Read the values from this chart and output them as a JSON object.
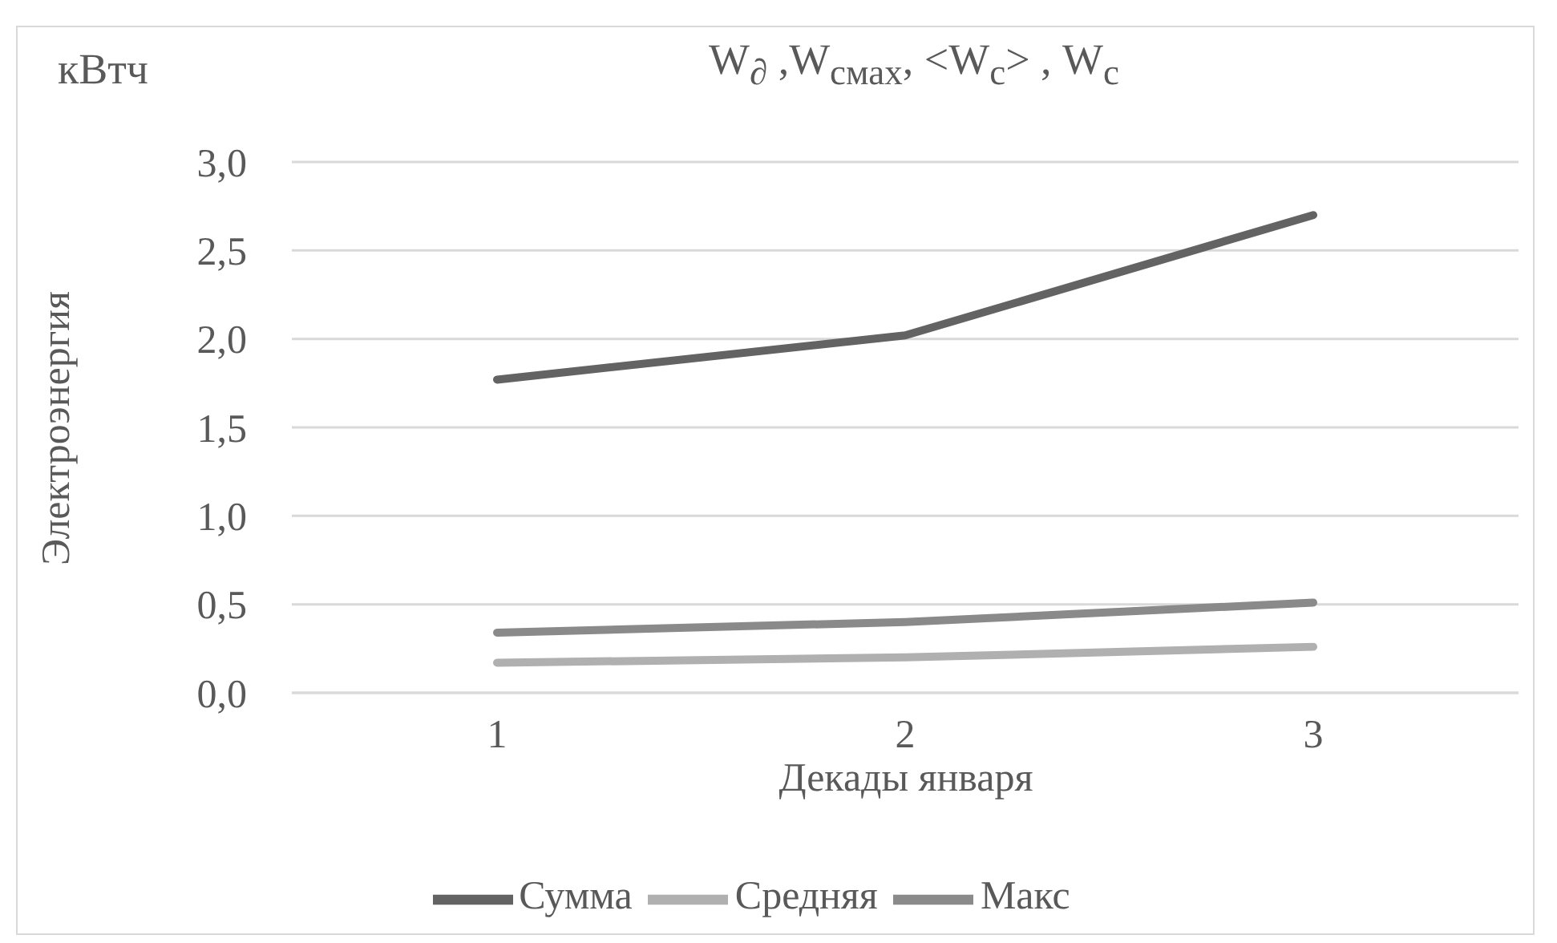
{
  "chart_data": {
    "type": "line",
    "title": "W$_{∂}$ ,W$_{смах}$, <W$_{с}$> , W$_{с}$",
    "xlabel": "Декады января",
    "ylabel": "Электроэнергия",
    "annotations": [
      "кВтч"
    ],
    "categories": [
      "1",
      "2",
      "3"
    ],
    "series": [
      {
        "name": "Сумма",
        "color": "#636363",
        "values": [
          1.77,
          2.02,
          2.7
        ]
      },
      {
        "name": "Средняя",
        "color": "#b0b0b0",
        "values": [
          0.17,
          0.2,
          0.26
        ]
      },
      {
        "name": "Макс",
        "color": "#8a8a8a",
        "values": [
          0.34,
          0.4,
          0.51
        ]
      }
    ],
    "ylim": [
      0,
      3
    ],
    "yticks": [
      {
        "value": 0,
        "label": "0,0"
      },
      {
        "value": 0.5,
        "label": "0,5"
      },
      {
        "value": 1,
        "label": "1,0"
      },
      {
        "value": 1.5,
        "label": "1,5"
      },
      {
        "value": 2,
        "label": "2,0"
      },
      {
        "value": 2.5,
        "label": "2,5"
      },
      {
        "value": 3,
        "label": "3,0"
      }
    ],
    "grid": "y",
    "legend": "bottom",
    "marker": "none",
    "line_style": "solid"
  }
}
